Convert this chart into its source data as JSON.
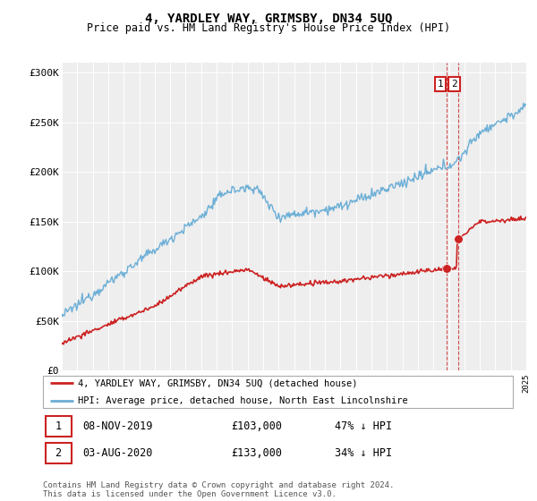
{
  "title": "4, YARDLEY WAY, GRIMSBY, DN34 5UQ",
  "subtitle": "Price paid vs. HM Land Registry's House Price Index (HPI)",
  "ylim": [
    0,
    310000
  ],
  "yticks": [
    0,
    50000,
    100000,
    150000,
    200000,
    250000,
    300000
  ],
  "ytick_labels": [
    "£0",
    "£50K",
    "£100K",
    "£150K",
    "£200K",
    "£250K",
    "£300K"
  ],
  "hpi_color": "#6baed6",
  "price_color": "#cc2222",
  "vline_color": "#cc2222",
  "background_color": "#eeeeee",
  "legend_label_red": "4, YARDLEY WAY, GRIMSBY, DN34 5UQ (detached house)",
  "legend_label_blue": "HPI: Average price, detached house, North East Lincolnshire",
  "annotation1_num": "1",
  "annotation1_date": "08-NOV-2019",
  "annotation1_price": "£103,000",
  "annotation1_pct": "47% ↓ HPI",
  "annotation2_num": "2",
  "annotation2_date": "03-AUG-2020",
  "annotation2_price": "£133,000",
  "annotation2_pct": "34% ↓ HPI",
  "footer": "Contains HM Land Registry data © Crown copyright and database right 2024.\nThis data is licensed under the Open Government Licence v3.0.",
  "sale1_year": 2019.86,
  "sale1_price": 103000,
  "sale2_year": 2020.58,
  "sale2_price": 133000
}
